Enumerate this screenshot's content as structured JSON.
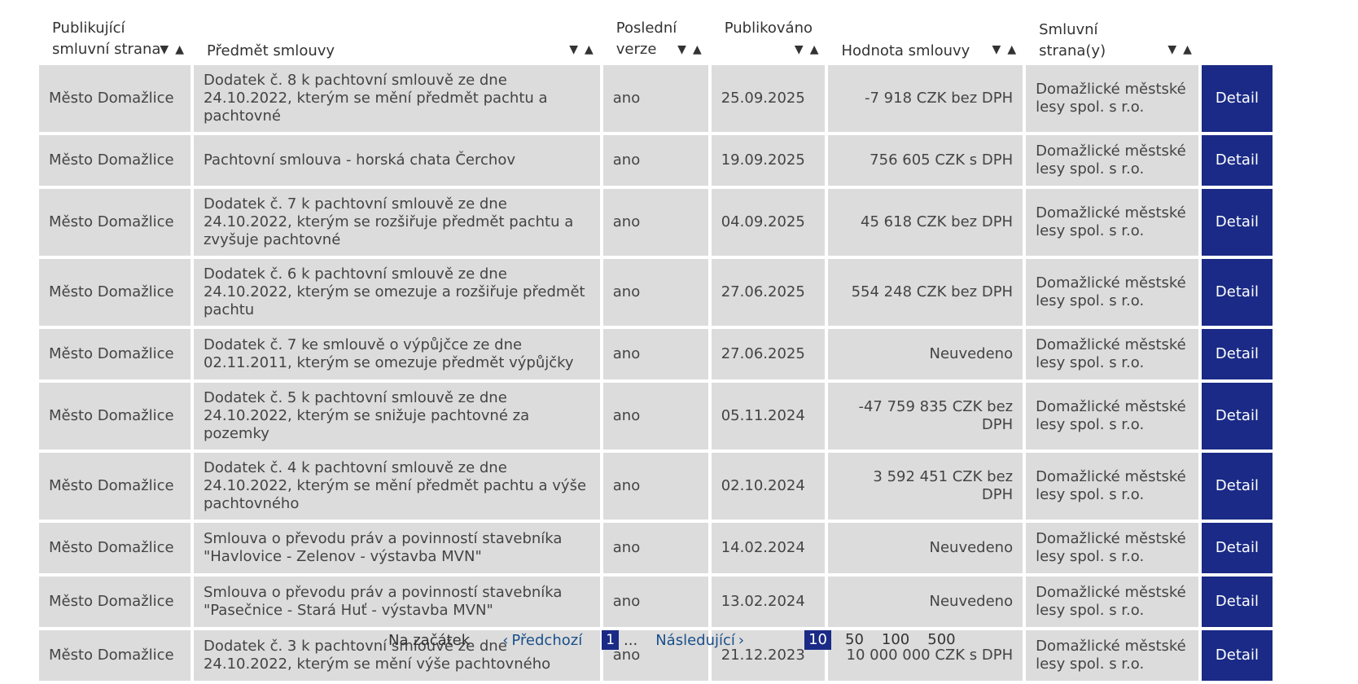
{
  "columns": {
    "publisher": "Publikující smluvní strana",
    "subject": "Předmět smlouvy",
    "latest": "Poslední verze",
    "published": "Publikováno",
    "value": "Hodnota smlouvy",
    "parties": "Smluvní strana(y)"
  },
  "sort": {
    "desc": "▼",
    "asc": "▲"
  },
  "rows": [
    {
      "publisher": "Město Domažlice",
      "subject": "Dodatek č. 8 k pachtovní smlouvě ze dne 24.10.2022, kterým se mění předmět pachtu a pachtovné",
      "latest": "ano",
      "published": "25.09.2025",
      "value": "-7 918 CZK bez DPH",
      "parties": "Domažlické městské lesy spol. s r.o.",
      "action": "Detail"
    },
    {
      "publisher": "Město Domažlice",
      "subject": "Pachtovní smlouva - horská chata Čerchov",
      "latest": "ano",
      "published": "19.09.2025",
      "value": "756 605 CZK s DPH",
      "parties": "Domažlické městské lesy spol. s r.o.",
      "action": "Detail"
    },
    {
      "publisher": "Město Domažlice",
      "subject": "Dodatek č. 7 k pachtovní smlouvě ze dne 24.10.2022, kterým se rozšiřuje předmět pachtu a zvyšuje pachtovné",
      "latest": "ano",
      "published": "04.09.2025",
      "value": "45 618 CZK bez DPH",
      "parties": "Domažlické městské lesy spol. s r.o.",
      "action": "Detail"
    },
    {
      "publisher": "Město Domažlice",
      "subject": "Dodatek č. 6 k pachtovní smlouvě ze dne 24.10.2022, kterým se omezuje a rozšiřuje předmět pachtu",
      "latest": "ano",
      "published": "27.06.2025",
      "value": "554 248 CZK bez DPH",
      "parties": "Domažlické městské lesy spol. s r.o.",
      "action": "Detail"
    },
    {
      "publisher": "Město Domažlice",
      "subject": "Dodatek č. 7 ke smlouvě o výpůjčce ze dne 02.11.2011, kterým se omezuje předmět výpůjčky",
      "latest": "ano",
      "published": "27.06.2025",
      "value": "Neuvedeno",
      "parties": "Domažlické městské lesy spol. s r.o.",
      "action": "Detail"
    },
    {
      "publisher": "Město Domažlice",
      "subject": "Dodatek č. 5 k pachtovní smlouvě ze dne 24.10.2022, kterým se snižuje pachtovné za pozemky",
      "latest": "ano",
      "published": "05.11.2024",
      "value": "-47 759 835 CZK bez DPH",
      "parties": "Domažlické městské lesy spol. s r.o.",
      "action": "Detail"
    },
    {
      "publisher": "Město Domažlice",
      "subject": "Dodatek č. 4 k pachtovní smlouvě ze dne 24.10.2022, kterým se mění předmět pachtu a výše pachtovného",
      "latest": "ano",
      "published": "02.10.2024",
      "value": "3 592 451 CZK bez DPH",
      "parties": "Domažlické městské lesy spol. s r.o.",
      "action": "Detail"
    },
    {
      "publisher": "Město Domažlice",
      "subject": "Smlouva o převodu práv a povinností stavebníka \"Havlovice - Zelenov - výstavba MVN\"",
      "latest": "ano",
      "published": "14.02.2024",
      "value": "Neuvedeno",
      "parties": "Domažlické městské lesy spol. s r.o.",
      "action": "Detail"
    },
    {
      "publisher": "Město Domažlice",
      "subject": "Smlouva o převodu práv a povinností stavebníka \"Pasečnice - Stará Huť - výstavba MVN\"",
      "latest": "ano",
      "published": "13.02.2024",
      "value": "Neuvedeno",
      "parties": "Domažlické městské lesy spol. s r.o.",
      "action": "Detail"
    },
    {
      "publisher": "Město Domažlice",
      "subject": "Dodatek č. 3 k pachtovní smlouvě ze dne 24.10.2022, kterým se mění výše pachtovného",
      "latest": "ano",
      "published": "21.12.2023",
      "value": "10 000 000 CZK s DPH",
      "parties": "Domažlické městské lesy spol. s r.o.",
      "action": "Detail"
    }
  ],
  "pagination": {
    "first": "Na začátek",
    "prev": "Předchozí",
    "current": "1",
    "ellipsis": "...",
    "next": "Následující",
    "prev_icon": "chevron-left-icon",
    "next_icon": "chevron-right-icon"
  },
  "page_sizes": {
    "options": [
      "10",
      "50",
      "100",
      "500"
    ],
    "selected": "10"
  },
  "colors": {
    "accent": "#1a2a86",
    "row_bg": "#dcdcdc",
    "link": "#1a4f8a"
  }
}
